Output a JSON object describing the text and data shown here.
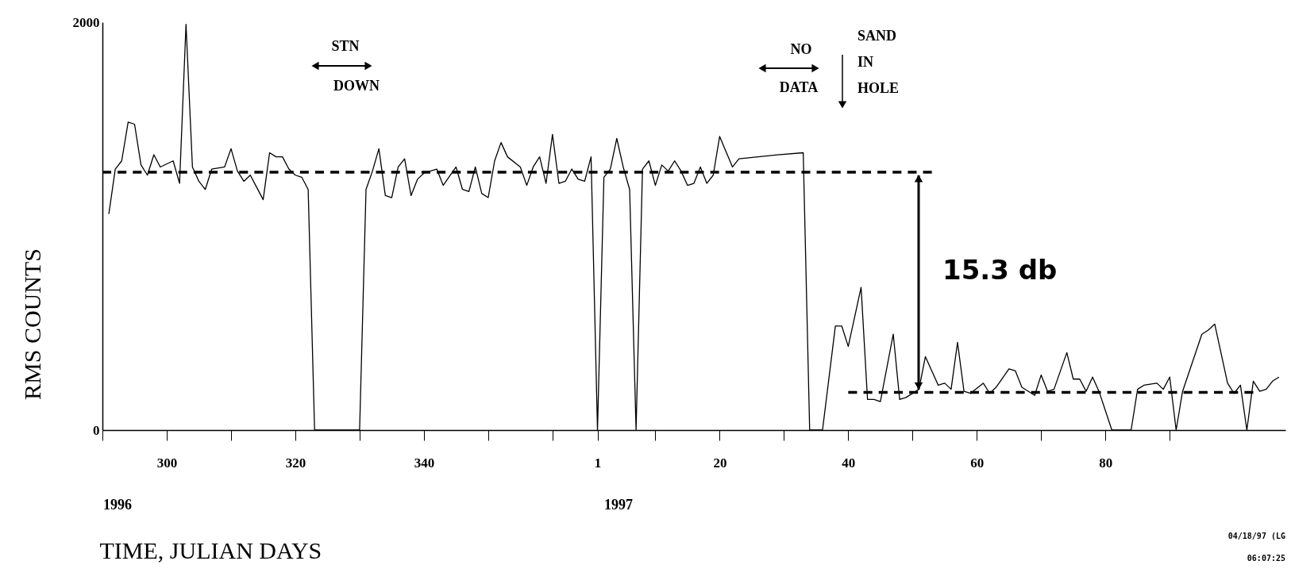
{
  "chart_data": {
    "type": "line",
    "xlabel": "TIME, JULIAN DAYS",
    "ylabel": "RMS COUNTS",
    "xlim": [
      "1996-10-16",
      "1997-04-18"
    ],
    "ylim": [
      0,
      2000
    ],
    "yticks": [
      0,
      2000
    ],
    "grid": false,
    "xticks": [
      {
        "value": "1996-10-16",
        "label": null
      },
      {
        "value": "1996-10-26",
        "label": "300"
      },
      {
        "value": "1996-11-05",
        "label": null
      },
      {
        "value": "1996-11-15",
        "label": "320"
      },
      {
        "value": "1996-11-25",
        "label": null
      },
      {
        "value": "1996-12-05",
        "label": "340"
      },
      {
        "value": "1996-12-15",
        "label": null
      },
      {
        "value": "1996-12-25",
        "label": null
      },
      {
        "value": "1997-01-01",
        "label": "1"
      },
      {
        "value": "1997-01-10",
        "label": null
      },
      {
        "value": "1997-01-20",
        "label": "20"
      },
      {
        "value": "1997-01-30",
        "label": null
      },
      {
        "value": "1997-02-09",
        "label": "40"
      },
      {
        "value": "1997-02-19",
        "label": null
      },
      {
        "value": "1997-03-01",
        "label": "60"
      },
      {
        "value": "1997-03-11",
        "label": null
      },
      {
        "value": "1997-03-21",
        "label": "80"
      },
      {
        "value": "1997-03-31",
        "label": null
      }
    ],
    "series": [
      {
        "color": "#000000",
        "line_style": "solid",
        "x": [
          "1996-10-17",
          "1996-10-18",
          "1996-10-19",
          "1996-10-20",
          "1996-10-21",
          "1996-10-22",
          "1996-10-23",
          "1996-10-24",
          "1996-10-25",
          "1996-10-27",
          "1996-10-28",
          "1996-10-29",
          "1996-10-30",
          "1996-10-31",
          "1996-11-01",
          "1996-11-02",
          "1996-11-04",
          "1996-11-05",
          "1996-11-06",
          "1996-11-07",
          "1996-11-08",
          "1996-11-09",
          "1996-11-10",
          "1996-11-11",
          "1996-11-12",
          "1996-11-13",
          "1996-11-14",
          "1996-11-15",
          "1996-11-16",
          "1996-11-17",
          "1996-11-18",
          "1996-11-25",
          "1996-11-26",
          "1996-11-27",
          "1996-11-28",
          "1996-11-29",
          "1996-11-30",
          "1996-12-01",
          "1996-12-02",
          "1996-12-03",
          "1996-12-04",
          "1996-12-05",
          "1996-12-07",
          "1996-12-08",
          "1996-12-10",
          "1996-12-11",
          "1996-12-12",
          "1996-12-13",
          "1996-12-14",
          "1996-12-15",
          "1996-12-16",
          "1996-12-17",
          "1996-12-18",
          "1996-12-20",
          "1996-12-21",
          "1996-12-22",
          "1996-12-23",
          "1996-12-24",
          "1996-12-25",
          "1996-12-26",
          "1996-12-27",
          "1996-12-28",
          "1996-12-29",
          "1996-12-30",
          "1996-12-31",
          "1997-01-01",
          "1997-01-02",
          "1997-01-03",
          "1997-01-04",
          "1997-01-05",
          "1997-01-06",
          "1997-01-07",
          "1997-01-08",
          "1997-01-09",
          "1997-01-10",
          "1997-01-11",
          "1997-01-12",
          "1997-01-13",
          "1997-01-14",
          "1997-01-15",
          "1997-01-16",
          "1997-01-17",
          "1997-01-18",
          "1997-01-19",
          "1997-01-20",
          "1997-01-22",
          "1997-01-23",
          "1997-01-29",
          "1997-02-02",
          "1997-02-03",
          "1997-02-05",
          "1997-02-07",
          "1997-02-08",
          "1997-02-09",
          "1997-02-11",
          "1997-02-12",
          "1997-02-13",
          "1997-02-14",
          "1997-02-16",
          "1997-02-17",
          "1997-02-18",
          "1997-02-20",
          "1997-02-21",
          "1997-02-23",
          "1997-02-24",
          "1997-02-25",
          "1997-02-26",
          "1997-02-27",
          "1997-02-28",
          "1997-03-02",
          "1997-03-03",
          "1997-03-04",
          "1997-03-06",
          "1997-03-07",
          "1997-03-08",
          "1997-03-10",
          "1997-03-11",
          "1997-03-12",
          "1997-03-13",
          "1997-03-15",
          "1997-03-16",
          "1997-03-17",
          "1997-03-18",
          "1997-03-19",
          "1997-03-20",
          "1997-03-22",
          "1997-03-25",
          "1997-03-26",
          "1997-03-27",
          "1997-03-29",
          "1997-03-30",
          "1997-03-31",
          "1997-04-01",
          "1997-04-02",
          "1997-04-05",
          "1997-04-06",
          "1997-04-07",
          "1997-04-09",
          "1997-04-10",
          "1997-04-11",
          "1997-04-12",
          "1997-04-13",
          "1997-04-14",
          "1997-04-15",
          "1997-04-16",
          "1997-04-17"
        ],
        "values": [
          1060,
          1280,
          1320,
          1510,
          1500,
          1300,
          1250,
          1350,
          1290,
          1320,
          1210,
          1990,
          1290,
          1220,
          1180,
          1280,
          1290,
          1380,
          1270,
          1220,
          1250,
          1190,
          1130,
          1360,
          1340,
          1340,
          1280,
          1250,
          1240,
          1180,
          0,
          0,
          1180,
          1270,
          1380,
          1150,
          1140,
          1290,
          1330,
          1150,
          1230,
          1260,
          1280,
          1200,
          1290,
          1180,
          1170,
          1290,
          1160,
          1140,
          1320,
          1410,
          1340,
          1290,
          1200,
          1290,
          1340,
          1210,
          1450,
          1210,
          1220,
          1280,
          1230,
          1220,
          1340,
          0,
          1240,
          1280,
          1430,
          1290,
          1180,
          0,
          1280,
          1320,
          1200,
          1300,
          1270,
          1320,
          1270,
          1200,
          1210,
          1290,
          1210,
          1250,
          1440,
          1290,
          1330,
          1350,
          1360,
          0,
          0,
          510,
          510,
          410,
          700,
          150,
          150,
          140,
          470,
          150,
          160,
          200,
          360,
          220,
          230,
          200,
          430,
          190,
          180,
          230,
          180,
          210,
          300,
          290,
          210,
          170,
          270,
          190,
          200,
          380,
          250,
          250,
          190,
          260,
          190,
          0,
          0,
          200,
          220,
          230,
          200,
          260,
          0,
          190,
          470,
          490,
          520,
          230,
          180,
          220,
          0,
          240,
          190,
          200,
          240,
          260
        ]
      },
      {
        "type": "line",
        "color": "#000000",
        "line_style": "dashed",
        "x": [
          "1996-10-16",
          "1997-02-22"
        ],
        "values": [
          1265,
          1265
        ]
      },
      {
        "type": "line",
        "color": "#000000",
        "line_style": "dashed",
        "x": [
          "1997-02-09",
          "1997-04-13"
        ],
        "values": [
          185,
          185
        ]
      }
    ],
    "annotations": [
      "STN",
      "DOWN",
      "NO",
      "DATA",
      "SAND",
      "IN",
      "HOLE",
      "15.3 db",
      "1996",
      "1997",
      "04/18/97 (LG",
      "06:07:25"
    ]
  }
}
